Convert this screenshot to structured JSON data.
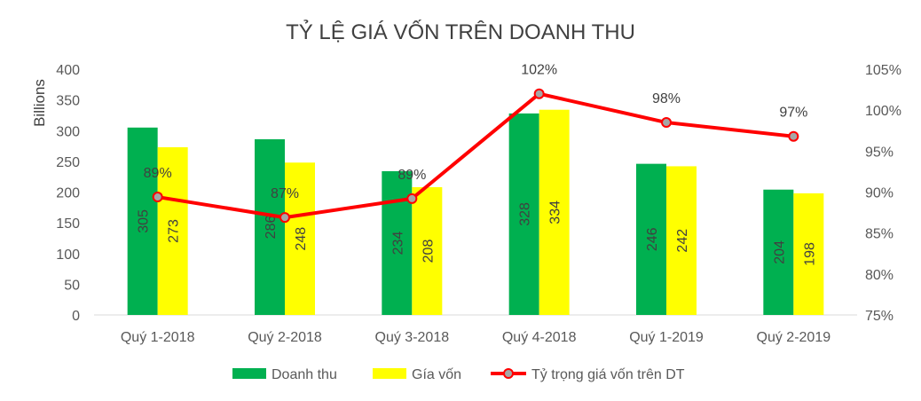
{
  "chart_data": {
    "type": "bar",
    "title": "TỶ LỆ GIÁ VỐN TRÊN DOANH THU",
    "ylabel": "Billions",
    "categories": [
      "Quý 1-2018",
      "Quý 2-2018",
      "Quý 3-2018",
      "Quý 4-2018",
      "Quý 1-2019",
      "Quý 2-2019"
    ],
    "ylim": [
      0,
      400
    ],
    "yticks": [
      "0",
      "50",
      "100",
      "150",
      "200",
      "250",
      "300",
      "350",
      "400"
    ],
    "y2lim": [
      75,
      105
    ],
    "y2ticks": [
      "75%",
      "80%",
      "85%",
      "90%",
      "95%",
      "100%",
      "105%"
    ],
    "grid": false,
    "legend_position": "bottom",
    "series": [
      {
        "name": "Doanh thu",
        "kind": "bar",
        "axis": "left",
        "color": "#00b050",
        "values": [
          305,
          286,
          234,
          328,
          246,
          204
        ],
        "labels": [
          "305",
          "286",
          "234",
          "328",
          "246",
          "204"
        ]
      },
      {
        "name": "Gía vốn",
        "kind": "bar",
        "axis": "left",
        "color": "#ffff00",
        "values": [
          273,
          248,
          208,
          334,
          242,
          198
        ],
        "labels": [
          "273",
          "248",
          "208",
          "334",
          "242",
          "198"
        ]
      },
      {
        "name": "Tỷ trọng giá vốn trên DT",
        "kind": "line",
        "axis": "right",
        "color": "#ff0000",
        "marker_color": "#a6a6a6",
        "values": [
          89.4,
          86.9,
          89.2,
          102.0,
          98.5,
          96.8
        ],
        "labels": [
          "89%",
          "87%",
          "89%",
          "102%",
          "98%",
          "97%"
        ]
      }
    ]
  }
}
